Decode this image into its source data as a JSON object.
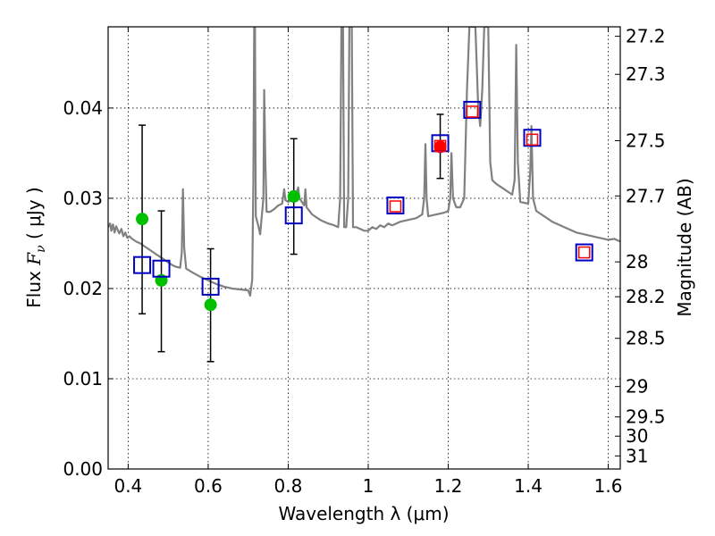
{
  "chart_data": {
    "type": "scatter",
    "title": "",
    "xlabel": "Wavelength  λ (μm)",
    "ylabel_left": {
      "prefix": "Flux  ",
      "symbol": "F",
      "sub": "ν",
      "suffix": "  ( μJy )"
    },
    "ylabel_right": "Magnitude (AB)",
    "xlim": [
      0.35,
      1.63
    ],
    "ylim": [
      0.0,
      0.049
    ],
    "grid": true,
    "x_ticks": [
      0.4,
      0.6,
      0.8,
      1.0,
      1.2,
      1.4,
      1.6
    ],
    "x_tick_labels": [
      "0.4",
      "0.6",
      "0.8",
      "1",
      "1.2",
      "1.4",
      "1.6"
    ],
    "y_ticks": [
      0.0,
      0.01,
      0.02,
      0.03,
      0.04
    ],
    "y_tick_labels": [
      "0.00",
      "0.01",
      "0.02",
      "0.03",
      "0.04"
    ],
    "right_ticks": [
      {
        "label": "27.2",
        "flux": 0.04795
      },
      {
        "label": "27.3",
        "flux": 0.04373
      },
      {
        "label": "27.5",
        "flux": 0.03638
      },
      {
        "label": "27.7",
        "flux": 0.03026
      },
      {
        "label": "28",
        "flux": 0.02295
      },
      {
        "label": "28.2",
        "flux": 0.01909
      },
      {
        "label": "28.5",
        "flux": 0.01448
      },
      {
        "label": "29",
        "flux": 0.00914
      },
      {
        "label": "29.5",
        "flux": 0.00577
      },
      {
        "label": "30",
        "flux": 0.00364
      },
      {
        "label": "31",
        "flux": 0.00145
      }
    ],
    "template_spectrum": {
      "color": "#808080",
      "points": [
        [
          0.35,
          0.0268
        ],
        [
          0.355,
          0.0272
        ],
        [
          0.358,
          0.0264
        ],
        [
          0.362,
          0.0271
        ],
        [
          0.366,
          0.0262
        ],
        [
          0.37,
          0.0269
        ],
        [
          0.374,
          0.0265
        ],
        [
          0.378,
          0.0261
        ],
        [
          0.383,
          0.0266
        ],
        [
          0.388,
          0.0258
        ],
        [
          0.393,
          0.0262
        ],
        [
          0.398,
          0.0256
        ],
        [
          0.403,
          0.0258
        ],
        [
          0.41,
          0.0255
        ],
        [
          0.42,
          0.0252
        ],
        [
          0.43,
          0.025
        ],
        [
          0.44,
          0.0247
        ],
        [
          0.45,
          0.0244
        ],
        [
          0.46,
          0.0241
        ],
        [
          0.47,
          0.0238
        ],
        [
          0.48,
          0.0235
        ],
        [
          0.49,
          0.0232
        ],
        [
          0.5,
          0.0229
        ],
        [
          0.51,
          0.0226
        ],
        [
          0.52,
          0.0224
        ],
        [
          0.53,
          0.0223
        ],
        [
          0.534,
          0.024
        ],
        [
          0.537,
          0.031
        ],
        [
          0.54,
          0.0245
        ],
        [
          0.545,
          0.0222
        ],
        [
          0.56,
          0.0218
        ],
        [
          0.58,
          0.0213
        ],
        [
          0.6,
          0.0209
        ],
        [
          0.62,
          0.0205
        ],
        [
          0.64,
          0.0202
        ],
        [
          0.66,
          0.02
        ],
        [
          0.68,
          0.0199
        ],
        [
          0.7,
          0.0198
        ],
        [
          0.705,
          0.0192
        ],
        [
          0.71,
          0.021
        ],
        [
          0.713,
          0.032
        ],
        [
          0.715,
          0.049
        ],
        [
          0.717,
          0.049
        ],
        [
          0.719,
          0.028
        ],
        [
          0.725,
          0.027
        ],
        [
          0.73,
          0.026
        ],
        [
          0.738,
          0.03
        ],
        [
          0.74,
          0.042
        ],
        [
          0.743,
          0.034
        ],
        [
          0.746,
          0.0285
        ],
        [
          0.755,
          0.0285
        ],
        [
          0.765,
          0.0288
        ],
        [
          0.775,
          0.0292
        ],
        [
          0.785,
          0.0294
        ],
        [
          0.79,
          0.031
        ],
        [
          0.793,
          0.0298
        ],
        [
          0.8,
          0.0296
        ],
        [
          0.808,
          0.0298
        ],
        [
          0.812,
          0.0303
        ],
        [
          0.82,
          0.0305
        ],
        [
          0.825,
          0.0312
        ],
        [
          0.828,
          0.03
        ],
        [
          0.84,
          0.0292
        ],
        [
          0.843,
          0.031
        ],
        [
          0.846,
          0.029
        ],
        [
          0.86,
          0.0282
        ],
        [
          0.88,
          0.0276
        ],
        [
          0.9,
          0.0272
        ],
        [
          0.915,
          0.027
        ],
        [
          0.925,
          0.0268
        ],
        [
          0.93,
          0.03
        ],
        [
          0.933,
          0.049
        ],
        [
          0.937,
          0.049
        ],
        [
          0.94,
          0.0268
        ],
        [
          0.945,
          0.0268
        ],
        [
          0.95,
          0.03
        ],
        [
          0.953,
          0.049
        ],
        [
          0.959,
          0.049
        ],
        [
          0.962,
          0.0268
        ],
        [
          0.97,
          0.0268
        ],
        [
          0.98,
          0.0266
        ],
        [
          0.99,
          0.0264
        ],
        [
          1.0,
          0.0264
        ],
        [
          1.01,
          0.0268
        ],
        [
          1.02,
          0.0266
        ],
        [
          1.03,
          0.027
        ],
        [
          1.04,
          0.0268
        ],
        [
          1.05,
          0.0272
        ],
        [
          1.06,
          0.027
        ],
        [
          1.08,
          0.0274
        ],
        [
          1.1,
          0.0276
        ],
        [
          1.12,
          0.0278
        ],
        [
          1.135,
          0.0282
        ],
        [
          1.14,
          0.03
        ],
        [
          1.143,
          0.036
        ],
        [
          1.146,
          0.03
        ],
        [
          1.15,
          0.028
        ],
        [
          1.17,
          0.0282
        ],
        [
          1.19,
          0.0284
        ],
        [
          1.2,
          0.0286
        ],
        [
          1.205,
          0.03
        ],
        [
          1.208,
          0.035
        ],
        [
          1.212,
          0.03
        ],
        [
          1.22,
          0.029
        ],
        [
          1.23,
          0.029
        ],
        [
          1.24,
          0.03
        ],
        [
          1.247,
          0.042
        ],
        [
          1.253,
          0.049
        ],
        [
          1.268,
          0.049
        ],
        [
          1.275,
          0.04
        ],
        [
          1.28,
          0.038
        ],
        [
          1.285,
          0.042
        ],
        [
          1.29,
          0.049
        ],
        [
          1.3,
          0.049
        ],
        [
          1.305,
          0.034
        ],
        [
          1.31,
          0.032
        ],
        [
          1.32,
          0.0316
        ],
        [
          1.34,
          0.031
        ],
        [
          1.36,
          0.0304
        ],
        [
          1.366,
          0.032
        ],
        [
          1.37,
          0.047
        ],
        [
          1.374,
          0.034
        ],
        [
          1.38,
          0.0296
        ],
        [
          1.4,
          0.0294
        ],
        [
          1.405,
          0.033
        ],
        [
          1.408,
          0.038
        ],
        [
          1.412,
          0.03
        ],
        [
          1.42,
          0.0286
        ],
        [
          1.44,
          0.028
        ],
        [
          1.46,
          0.0274
        ],
        [
          1.48,
          0.027
        ],
        [
          1.5,
          0.0266
        ],
        [
          1.52,
          0.0262
        ],
        [
          1.54,
          0.026
        ],
        [
          1.56,
          0.0258
        ],
        [
          1.58,
          0.0256
        ],
        [
          1.6,
          0.0254
        ],
        [
          1.615,
          0.0255
        ],
        [
          1.63,
          0.0252
        ]
      ]
    },
    "series": [
      {
        "marker": "circle",
        "color": "#00c000",
        "points": [
          [
            0.435,
            0.0277
          ],
          [
            0.483,
            0.0209
          ],
          [
            0.606,
            0.0182
          ],
          [
            0.814,
            0.0302
          ]
        ]
      },
      {
        "marker": "circle",
        "color": "#ff0000",
        "points": [
          [
            1.18,
            0.0357
          ]
        ]
      },
      {
        "marker": "open-square",
        "color": "#0000c0",
        "points": [
          [
            0.435,
            0.0226
          ],
          [
            0.483,
            0.0222
          ],
          [
            0.606,
            0.0202
          ],
          [
            0.814,
            0.0281
          ],
          [
            1.068,
            0.0292
          ],
          [
            1.18,
            0.0361
          ],
          [
            1.26,
            0.0398
          ],
          [
            1.41,
            0.0367
          ],
          [
            1.54,
            0.024
          ]
        ]
      },
      {
        "marker": "open-square-small",
        "color": "#ff0000",
        "points": [
          [
            1.068,
            0.0291
          ],
          [
            1.18,
            0.0358
          ],
          [
            1.26,
            0.0396
          ],
          [
            1.41,
            0.0365
          ],
          [
            1.54,
            0.024
          ]
        ]
      }
    ],
    "error_bars": [
      {
        "x": 0.435,
        "low": 0.0172,
        "high": 0.0381
      },
      {
        "x": 0.483,
        "low": 0.013,
        "high": 0.0286
      },
      {
        "x": 0.606,
        "low": 0.0119,
        "high": 0.0244
      },
      {
        "x": 0.814,
        "low": 0.0238,
        "high": 0.0366
      },
      {
        "x": 1.18,
        "low": 0.0322,
        "high": 0.0393
      }
    ]
  }
}
